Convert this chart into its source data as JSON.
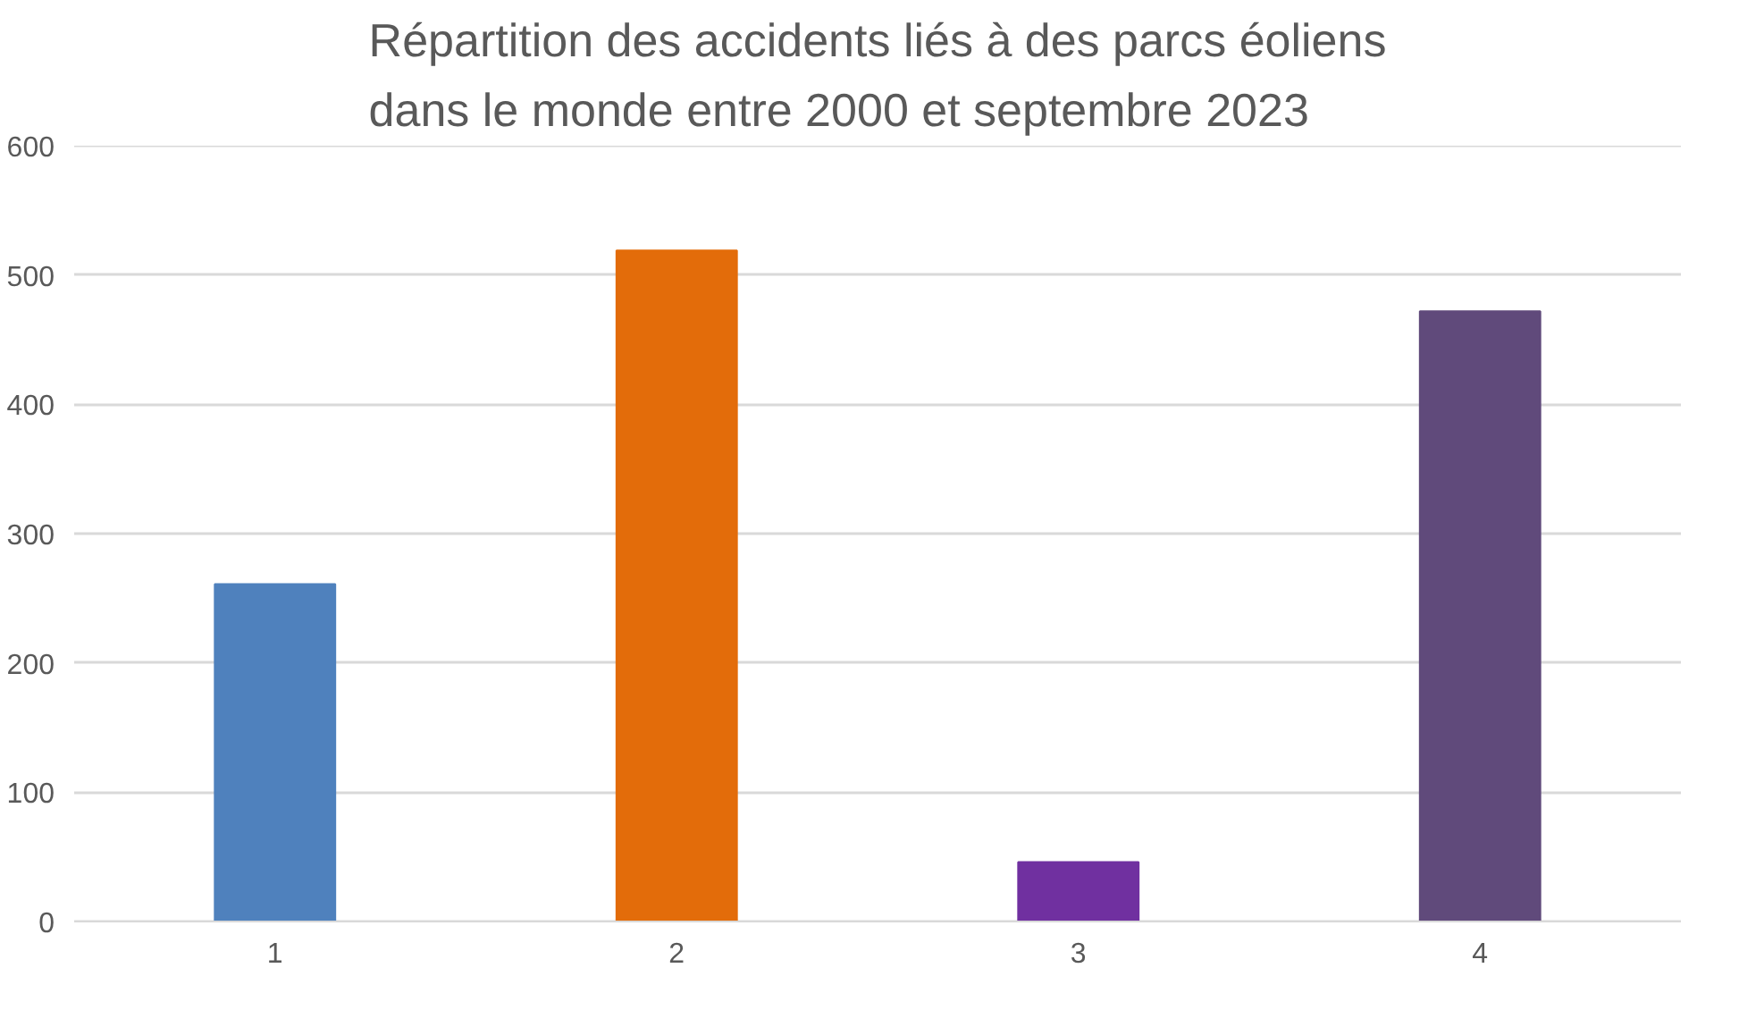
{
  "chart_data": {
    "type": "bar",
    "title": "Répartition des accidents liés à des parcs éoliens\ndans le monde entre 2000 et septembre 2023",
    "categories": [
      "1",
      "2",
      "3",
      "4"
    ],
    "values": [
      261,
      519,
      46,
      472
    ],
    "colors": [
      "#4f81bd",
      "#e36c0a",
      "#7030a0",
      "#604a7b"
    ],
    "ylim": [
      0,
      600
    ],
    "yticks": [
      0,
      100,
      200,
      300,
      400,
      500,
      600
    ],
    "grid": "y"
  }
}
